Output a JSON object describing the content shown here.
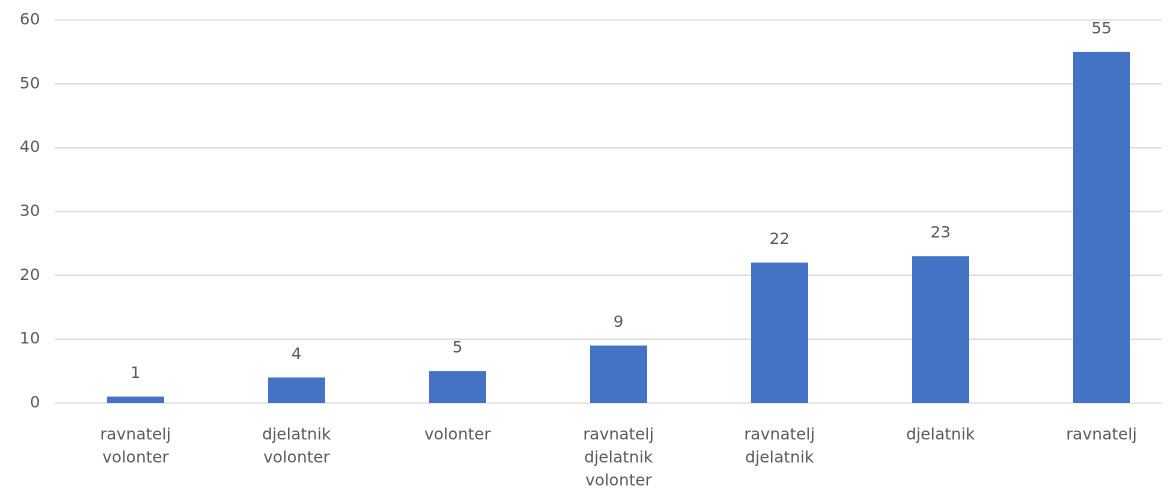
{
  "chart_data": {
    "type": "bar",
    "categories": [
      [
        "ravnatelj",
        "volonter"
      ],
      [
        "djelatnik",
        "volonter"
      ],
      [
        "volonter"
      ],
      [
        "ravnatelj",
        "djelatnik",
        "volonter"
      ],
      [
        "ravnatelj",
        "djelatnik"
      ],
      [
        "djelatnik"
      ],
      [
        "ravnatelj"
      ]
    ],
    "values": [
      1,
      4,
      5,
      9,
      22,
      23,
      55
    ],
    "color": "#4472c4",
    "ylim": [
      0,
      60
    ],
    "yticks": [
      0,
      10,
      20,
      30,
      40,
      50,
      60
    ],
    "grid": true
  }
}
